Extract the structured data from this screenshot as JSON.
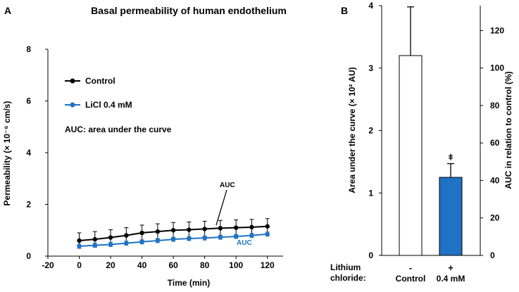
{
  "colors": {
    "control": "#000000",
    "licl": "#1f72c4",
    "bar_control": "#ffffff",
    "bar_licl": "#1f72c4",
    "axis": "#000000"
  },
  "chart_data": [
    {
      "panel": "A",
      "type": "line",
      "title": "Basal permeability of human endothelium",
      "xlabel": "Time (min)",
      "ylabel": "Permeability (× 10⁻⁶ cm/s)",
      "xlim": [
        -20,
        130
      ],
      "ylim": [
        0,
        8
      ],
      "xticks": [
        "-20",
        "0",
        "20",
        "40",
        "60",
        "80",
        "100",
        "120"
      ],
      "yticks": [
        "0",
        "2",
        "4",
        "6",
        "8"
      ],
      "legend": {
        "control": "Control",
        "licl": "LiCl 0.4 mM",
        "note": "AUC: area under the curve"
      },
      "annotations": {
        "control_auc": "AUC",
        "licl_auc": "AUC"
      },
      "series": [
        {
          "name": "Control",
          "x": [
            0,
            10,
            20,
            30,
            40,
            50,
            60,
            70,
            80,
            90,
            100,
            110,
            120
          ],
          "y": [
            0.6,
            0.65,
            0.72,
            0.8,
            0.9,
            0.95,
            1.0,
            1.02,
            1.05,
            1.08,
            1.1,
            1.12,
            1.15
          ],
          "err": 0.3
        },
        {
          "name": "LiCl 0.4 mM",
          "x": [
            0,
            10,
            20,
            30,
            40,
            50,
            60,
            70,
            80,
            90,
            100,
            110,
            120
          ],
          "y": [
            0.38,
            0.42,
            0.45,
            0.5,
            0.55,
            0.6,
            0.65,
            0.68,
            0.7,
            0.73,
            0.76,
            0.8,
            0.85
          ],
          "err": 0.08
        }
      ]
    },
    {
      "panel": "B",
      "type": "bar",
      "ylabel_left": "Area under the curve (× 10² AU)",
      "ylabel_right": "AUC in relation to control (%)",
      "ylim_left": [
        0,
        4
      ],
      "ylim_right": [
        0,
        133.3
      ],
      "yticks_left": [
        "0",
        "1",
        "2",
        "3",
        "4"
      ],
      "yticks_right": [
        "0",
        "20",
        "40",
        "60",
        "80",
        "100",
        "120"
      ],
      "row_label_line1": "Lithium",
      "row_label_line2": "chloride:",
      "categories": [
        "Control",
        "0.4 mM"
      ],
      "signs": [
        "-",
        "+"
      ],
      "values": [
        3.2,
        1.25
      ],
      "errors": [
        0.78,
        0.22
      ],
      "significance": [
        "",
        "ǂ"
      ]
    }
  ]
}
